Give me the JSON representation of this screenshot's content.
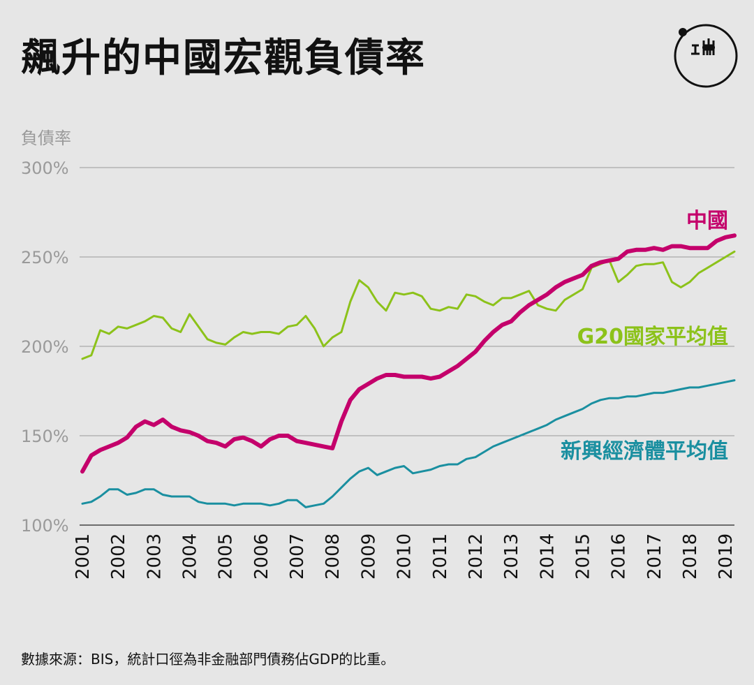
{
  "title": "飆升的中國宏觀負債率",
  "logo_text": "端",
  "source": "數據來源：BIS，統計口徑為非金融部門債務佔GDP的比重。",
  "chart_data": {
    "type": "line",
    "ylabel": "負債率",
    "ylim": [
      100,
      300
    ],
    "yticks": [
      100,
      150,
      200,
      250,
      300
    ],
    "ytick_labels": [
      "100%",
      "150%",
      "200%",
      "250%",
      "300%"
    ],
    "xlim": [
      2001,
      2019.25
    ],
    "xticks": [
      2001,
      2002,
      2003,
      2004,
      2005,
      2006,
      2007,
      2008,
      2009,
      2010,
      2011,
      2012,
      2013,
      2014,
      2015,
      2016,
      2017,
      2018,
      2019
    ],
    "grid": true,
    "series": [
      {
        "name": "中國",
        "color": "#c4006b",
        "label_color": "#c4006b",
        "width": 6,
        "x": [
          2001.0,
          2001.25,
          2001.5,
          2001.75,
          2002.0,
          2002.25,
          2002.5,
          2002.75,
          2003.0,
          2003.25,
          2003.5,
          2003.75,
          2004.0,
          2004.25,
          2004.5,
          2004.75,
          2005.0,
          2005.25,
          2005.5,
          2005.75,
          2006.0,
          2006.25,
          2006.5,
          2006.75,
          2007.0,
          2007.25,
          2007.5,
          2007.75,
          2008.0,
          2008.25,
          2008.5,
          2008.75,
          2009.0,
          2009.25,
          2009.5,
          2009.75,
          2010.0,
          2010.25,
          2010.5,
          2010.75,
          2011.0,
          2011.25,
          2011.5,
          2011.75,
          2012.0,
          2012.25,
          2012.5,
          2012.75,
          2013.0,
          2013.25,
          2013.5,
          2013.75,
          2014.0,
          2014.25,
          2014.5,
          2014.75,
          2015.0,
          2015.25,
          2015.5,
          2015.75,
          2016.0,
          2016.25,
          2016.5,
          2016.75,
          2017.0,
          2017.25,
          2017.5,
          2017.75,
          2018.0,
          2018.25,
          2018.5,
          2018.75,
          2019.0,
          2019.25
        ],
        "values": [
          130,
          139,
          142,
          144,
          146,
          149,
          155,
          158,
          156,
          159,
          155,
          153,
          152,
          150,
          147,
          146,
          144,
          148,
          149,
          147,
          144,
          148,
          150,
          150,
          147,
          146,
          145,
          144,
          143,
          158,
          170,
          176,
          179,
          182,
          184,
          184,
          183,
          183,
          183,
          182,
          183,
          186,
          189,
          193,
          197,
          203,
          208,
          212,
          214,
          219,
          223,
          226,
          229,
          233,
          236,
          238,
          240,
          245,
          247,
          248,
          249,
          253,
          254,
          254,
          255,
          254,
          256,
          256,
          255,
          255,
          255,
          259,
          261,
          262
        ]
      },
      {
        "name": "G20國家平均值",
        "color": "#8cc21a",
        "label_color": "#8cc21a",
        "width": 3,
        "x": [
          2001.0,
          2001.25,
          2001.5,
          2001.75,
          2002.0,
          2002.25,
          2002.5,
          2002.75,
          2003.0,
          2003.25,
          2003.5,
          2003.75,
          2004.0,
          2004.25,
          2004.5,
          2004.75,
          2005.0,
          2005.25,
          2005.5,
          2005.75,
          2006.0,
          2006.25,
          2006.5,
          2006.75,
          2007.0,
          2007.25,
          2007.5,
          2007.75,
          2008.0,
          2008.25,
          2008.5,
          2008.75,
          2009.0,
          2009.25,
          2009.5,
          2009.75,
          2010.0,
          2010.25,
          2010.5,
          2010.75,
          2011.0,
          2011.25,
          2011.5,
          2011.75,
          2012.0,
          2012.25,
          2012.5,
          2012.75,
          2013.0,
          2013.25,
          2013.5,
          2013.75,
          2014.0,
          2014.25,
          2014.5,
          2014.75,
          2015.0,
          2015.25,
          2015.5,
          2015.75,
          2016.0,
          2016.25,
          2016.5,
          2016.75,
          2017.0,
          2017.25,
          2017.5,
          2017.75,
          2018.0,
          2018.25,
          2018.5,
          2018.75,
          2019.0,
          2019.25
        ],
        "values": [
          193,
          195,
          209,
          207,
          211,
          210,
          212,
          214,
          217,
          216,
          210,
          208,
          218,
          211,
          204,
          202,
          201,
          205,
          208,
          207,
          208,
          208,
          207,
          211,
          212,
          217,
          210,
          200,
          205,
          208,
          225,
          237,
          233,
          225,
          220,
          230,
          229,
          230,
          228,
          221,
          220,
          222,
          221,
          229,
          228,
          225,
          223,
          227,
          227,
          229,
          231,
          223,
          221,
          220,
          226,
          229,
          232,
          244,
          246,
          248,
          236,
          240,
          245,
          246,
          246,
          247,
          236,
          233,
          236,
          241,
          244,
          247,
          250,
          253
        ]
      },
      {
        "name": "新興經濟體平均值",
        "color": "#1a8fa0",
        "label_color": "#1a8fa0",
        "width": 3,
        "x": [
          2001.0,
          2001.25,
          2001.5,
          2001.75,
          2002.0,
          2002.25,
          2002.5,
          2002.75,
          2003.0,
          2003.25,
          2003.5,
          2003.75,
          2004.0,
          2004.25,
          2004.5,
          2004.75,
          2005.0,
          2005.25,
          2005.5,
          2005.75,
          2006.0,
          2006.25,
          2006.5,
          2006.75,
          2007.0,
          2007.25,
          2007.5,
          2007.75,
          2008.0,
          2008.25,
          2008.5,
          2008.75,
          2009.0,
          2009.25,
          2009.5,
          2009.75,
          2010.0,
          2010.25,
          2010.5,
          2010.75,
          2011.0,
          2011.25,
          2011.5,
          2011.75,
          2012.0,
          2012.25,
          2012.5,
          2012.75,
          2013.0,
          2013.25,
          2013.5,
          2013.75,
          2014.0,
          2014.25,
          2014.5,
          2014.75,
          2015.0,
          2015.25,
          2015.5,
          2015.75,
          2016.0,
          2016.25,
          2016.5,
          2016.75,
          2017.0,
          2017.25,
          2017.5,
          2017.75,
          2018.0,
          2018.25,
          2018.5,
          2018.75,
          2019.0,
          2019.25
        ],
        "values": [
          112,
          113,
          116,
          120,
          120,
          117,
          118,
          120,
          120,
          117,
          116,
          116,
          116,
          113,
          112,
          112,
          112,
          111,
          112,
          112,
          112,
          111,
          112,
          114,
          114,
          110,
          111,
          112,
          116,
          121,
          126,
          130,
          132,
          128,
          130,
          132,
          133,
          129,
          130,
          131,
          133,
          134,
          134,
          137,
          138,
          141,
          144,
          146,
          148,
          150,
          152,
          154,
          156,
          159,
          161,
          163,
          165,
          168,
          170,
          171,
          171,
          172,
          172,
          173,
          174,
          174,
          175,
          176,
          177,
          177,
          178,
          179,
          180,
          181
        ]
      }
    ]
  }
}
